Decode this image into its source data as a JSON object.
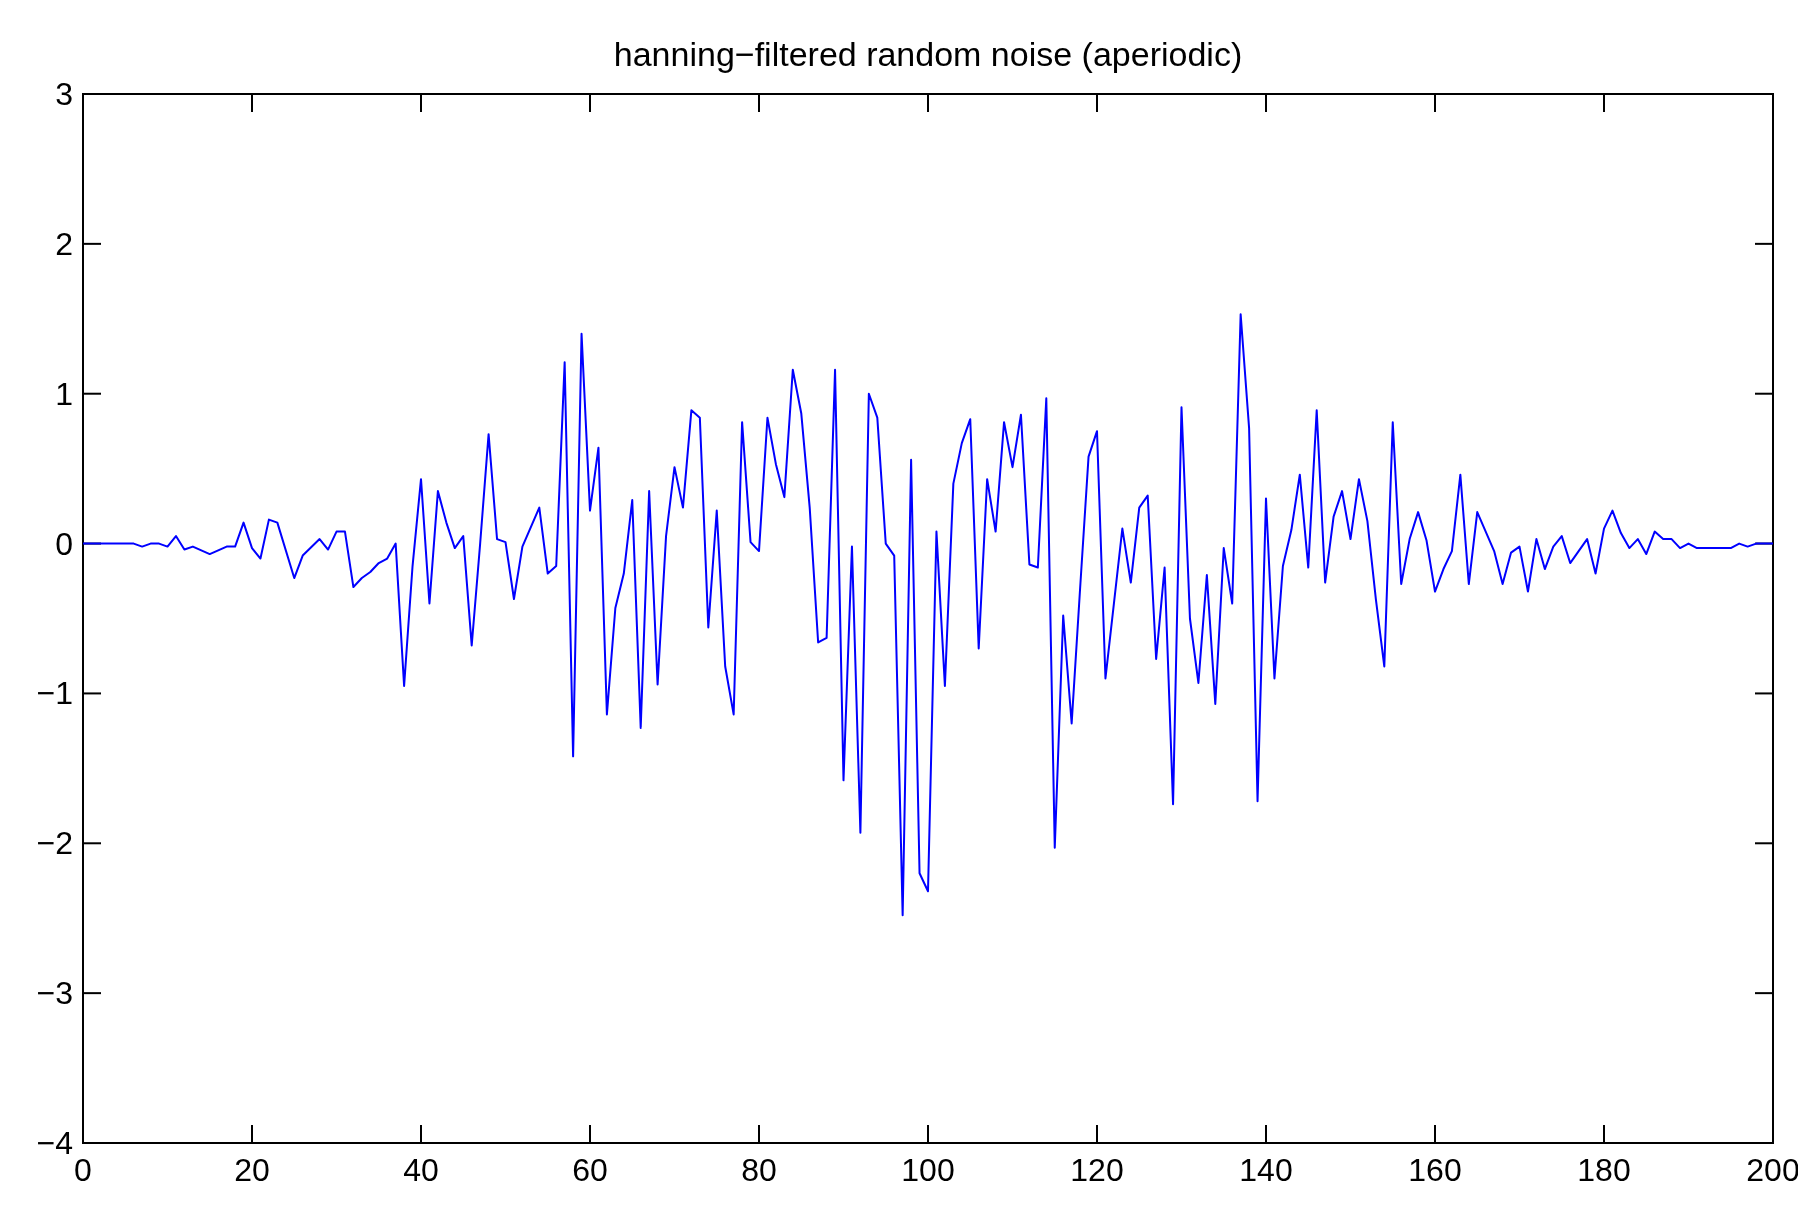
{
  "chart_data": {
    "type": "line",
    "title": "hanning−filtered random noise (aperiodic)",
    "x": [
      0,
      6,
      7,
      8,
      9,
      10,
      11,
      12,
      13,
      15,
      17,
      18,
      19,
      20,
      21,
      22,
      23,
      25,
      26,
      28,
      29,
      30,
      31,
      32,
      33,
      34,
      35,
      36,
      37,
      38,
      39,
      40,
      41,
      42,
      43,
      44,
      45,
      46,
      47,
      48,
      49,
      50,
      51,
      52,
      54,
      55,
      56,
      57,
      58,
      59,
      60,
      61,
      62,
      63,
      64,
      65,
      66,
      67,
      68,
      69,
      70,
      71,
      72,
      73,
      74,
      75,
      76,
      77,
      78,
      79,
      80,
      81,
      82,
      83,
      84,
      85,
      86,
      87,
      88,
      89,
      90,
      91,
      92,
      93,
      94,
      95,
      96,
      97,
      98,
      99,
      100,
      101,
      102,
      103,
      104,
      105,
      106,
      107,
      108,
      109,
      110,
      111,
      112,
      113,
      114,
      115,
      116,
      117,
      118,
      119,
      120,
      121,
      122,
      123,
      124,
      125,
      126,
      127,
      128,
      129,
      130,
      131,
      132,
      133,
      134,
      135,
      136,
      137,
      138,
      139,
      140,
      141,
      142,
      143,
      144,
      145,
      146,
      147,
      148,
      149,
      150,
      151,
      152,
      153,
      154,
      155,
      156,
      157,
      158,
      159,
      160,
      161,
      162,
      163,
      164,
      165,
      167,
      168,
      169,
      170,
      171,
      172,
      173,
      174,
      175,
      176,
      177,
      178,
      179,
      180,
      181,
      182,
      183,
      184,
      185,
      186,
      187,
      188,
      189,
      190,
      191,
      195,
      196,
      197,
      198,
      200
    ],
    "series": [
      {
        "color": "#0000ff",
        "values": [
          0,
          0,
          -0.02,
          0,
          0,
          -0.02,
          0.05,
          -0.04,
          -0.02,
          -0.07,
          -0.02,
          -0.02,
          0.14,
          -0.03,
          -0.1,
          0.16,
          0.14,
          -0.23,
          -0.08,
          0.03,
          -0.04,
          0.08,
          0.08,
          -0.29,
          -0.23,
          -0.19,
          -0.13,
          -0.1,
          0,
          -0.95,
          -0.15,
          0.43,
          -0.4,
          0.35,
          0.14,
          -0.03,
          0.05,
          -0.68,
          0,
          0.73,
          0.03,
          0.01,
          -0.37,
          -0.02,
          0.24,
          -0.2,
          -0.15,
          1.21,
          -1.42,
          1.4,
          0.22,
          0.64,
          -1.14,
          -0.43,
          -0.2,
          0.29,
          -1.23,
          0.35,
          -0.94,
          0.05,
          0.51,
          0.24,
          0.89,
          0.84,
          -0.56,
          0.22,
          -0.82,
          -1.14,
          0.81,
          0.01,
          -0.05,
          0.84,
          0.53,
          0.31,
          1.16,
          0.87,
          0.24,
          -0.66,
          -0.63,
          1.16,
          -1.58,
          -0.02,
          -1.93,
          1,
          0.84,
          0,
          -0.08,
          -2.48,
          0.56,
          -2.2,
          -2.32,
          0.08,
          -0.95,
          0.4,
          0.67,
          0.83,
          -0.7,
          0.43,
          0.08,
          0.81,
          0.51,
          0.86,
          -0.14,
          -0.16,
          0.97,
          -2.03,
          -0.48,
          -1.2,
          -0.3,
          0.58,
          0.75,
          -0.9,
          -0.4,
          0.1,
          -0.26,
          0.24,
          0.32,
          -0.77,
          -0.16,
          -1.74,
          0.91,
          -0.5,
          -0.93,
          -0.21,
          -1.07,
          -0.03,
          -0.4,
          1.53,
          0.77,
          -1.72,
          0.3,
          -0.9,
          -0.15,
          0.09,
          0.46,
          -0.16,
          0.89,
          -0.26,
          0.18,
          0.35,
          0.03,
          0.43,
          0.15,
          -0.37,
          -0.82,
          0.81,
          -0.27,
          0.03,
          0.21,
          0.02,
          -0.32,
          -0.17,
          -0.05,
          0.46,
          -0.27,
          0.21,
          -0.05,
          -0.27,
          -0.06,
          -0.02,
          -0.32,
          0.03,
          -0.17,
          -0.02,
          0.05,
          -0.13,
          -0.05,
          0.03,
          -0.2,
          0.1,
          0.22,
          0.07,
          -0.03,
          0.03,
          -0.07,
          0.08,
          0.03,
          0.03,
          -0.03,
          0,
          -0.03,
          -0.03,
          0,
          -0.02,
          0,
          0
        ]
      }
    ],
    "xlim": [
      0,
      200
    ],
    "xticks": [
      0,
      20,
      40,
      60,
      80,
      100,
      120,
      140,
      160,
      180,
      200
    ],
    "ylim": [
      -4,
      3
    ],
    "yticks": [
      {
        "value": -4,
        "label": "−4"
      },
      {
        "value": -3,
        "label": "−3"
      },
      {
        "value": -2,
        "label": "−2"
      },
      {
        "value": -1,
        "label": "−1"
      },
      0,
      1,
      2,
      3
    ],
    "grid": false,
    "marker": "none",
    "line_style": "solid"
  }
}
